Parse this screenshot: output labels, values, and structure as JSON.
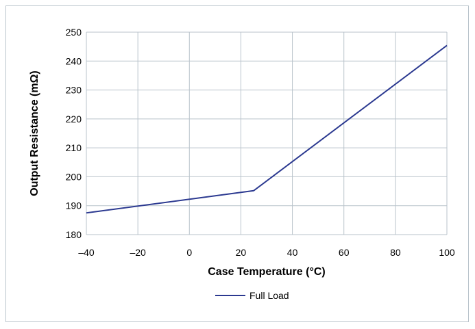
{
  "chart_data": {
    "type": "line",
    "xlabel": "Case Temperature (°C)",
    "ylabel": "Output Resistance (mΩ)",
    "xlim": [
      -40,
      100
    ],
    "ylim": [
      180,
      250
    ],
    "x_ticks": [
      -40,
      -20,
      0,
      20,
      40,
      60,
      80,
      100
    ],
    "x_tick_labels": [
      "–40",
      "–20",
      "0",
      "20",
      "40",
      "60",
      "80",
      "100"
    ],
    "y_ticks": [
      180,
      190,
      200,
      210,
      220,
      230,
      240,
      250
    ],
    "y_tick_labels": [
      "180",
      "190",
      "200",
      "210",
      "220",
      "230",
      "240",
      "250"
    ],
    "grid": true,
    "legend_position": "bottom",
    "series": [
      {
        "name": "Full Load",
        "color": "#2b3990",
        "x": [
          -40,
          25,
          100
        ],
        "y": [
          187.5,
          195.2,
          245.4
        ]
      }
    ]
  }
}
